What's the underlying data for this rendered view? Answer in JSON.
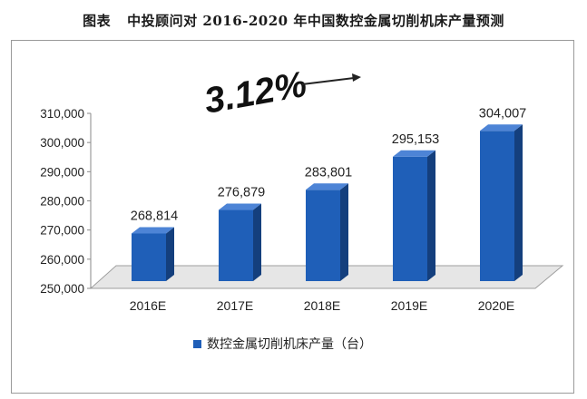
{
  "title_prefix": "图表",
  "title_main": "中投顾问对 2016-2020 年中国数控金属切削机床产量预测",
  "chart_data": {
    "type": "bar",
    "categories": [
      "2016E",
      "2017E",
      "2018E",
      "2019E",
      "2020E"
    ],
    "series": [
      {
        "name": "数控金属切削机床产量（台）",
        "values": [
          268814,
          276879,
          283801,
          295153,
          304007
        ],
        "data_labels": [
          "268,814",
          "276,879",
          "283,801",
          "295,153",
          "304,007"
        ]
      }
    ],
    "ylim": [
      250000,
      310000
    ],
    "yticks": [
      "250,000",
      "260,000",
      "270,000",
      "280,000",
      "290,000",
      "300,000",
      "310,000"
    ],
    "annotation": "3.12%",
    "legend": "bottom",
    "grid": false,
    "colors": {
      "bar_front": "#1f5fb8",
      "bar_side": "#143f7d",
      "bar_top": "#4d84d6",
      "floor": "#e4e4e4"
    }
  }
}
